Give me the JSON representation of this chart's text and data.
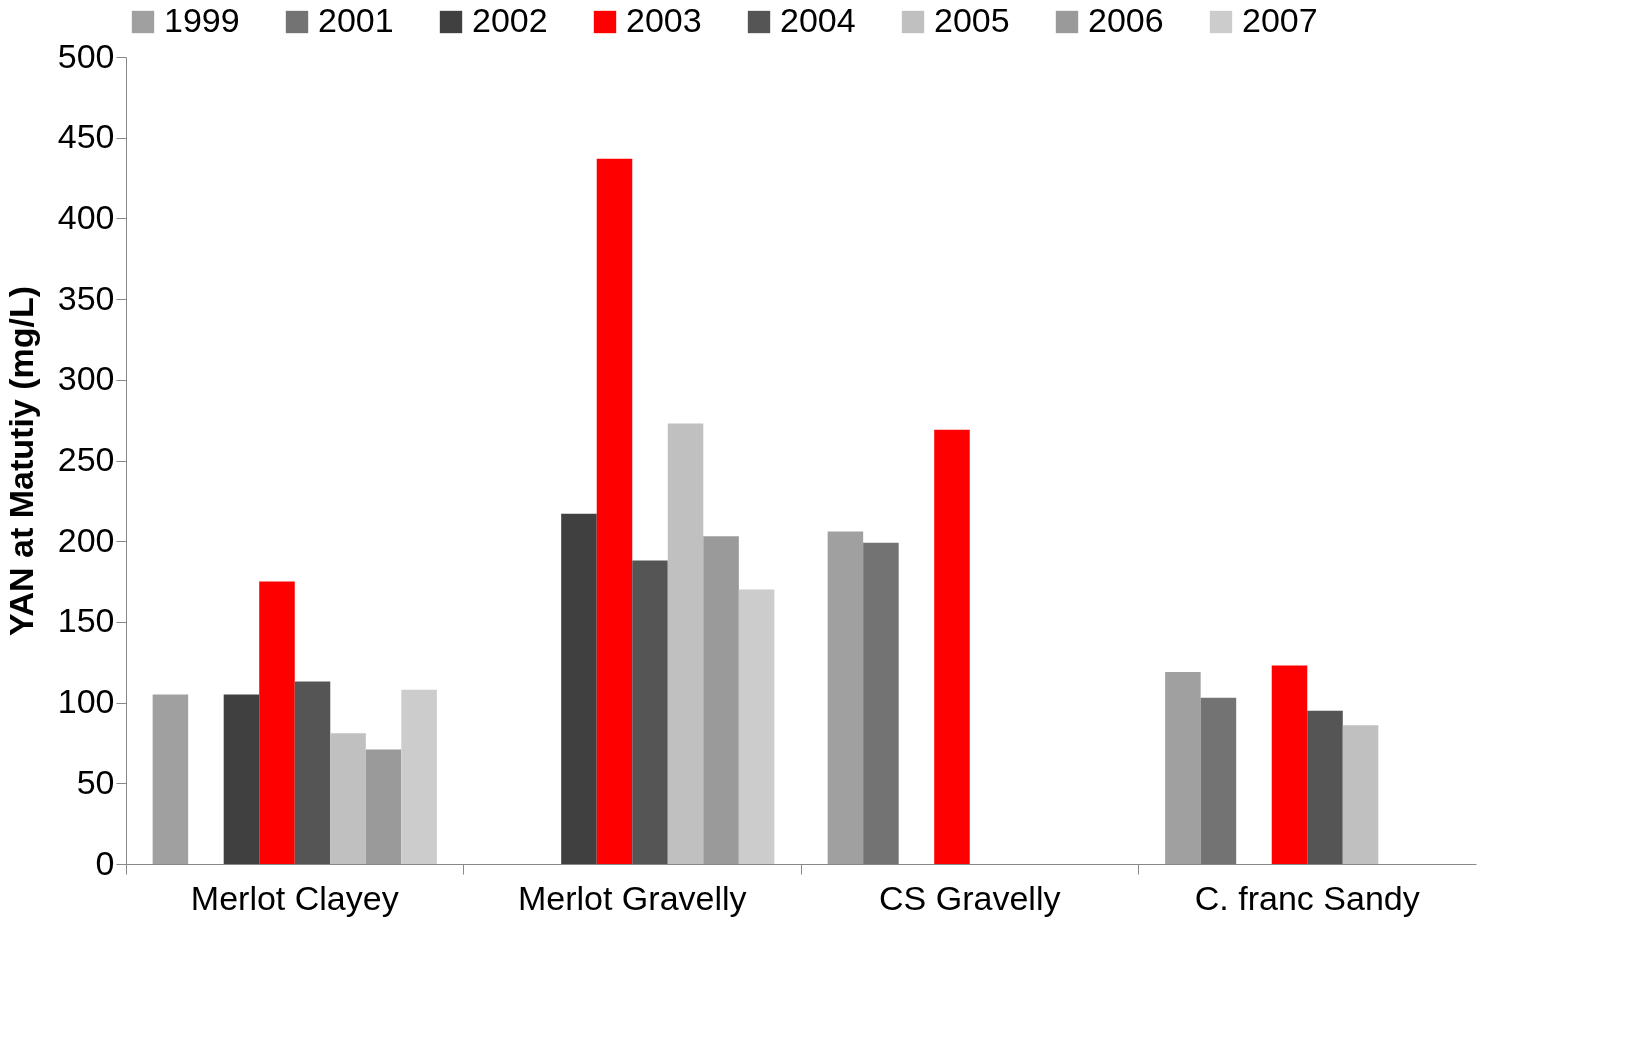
{
  "chart_data": {
    "type": "bar",
    "ylabel": "YAN at Matutiy (mg/L)",
    "categories": [
      "Merlot Clayey",
      "Merlot Gravelly",
      "CS Gravelly",
      "C. franc Sandy"
    ],
    "series": [
      {
        "name": "1999",
        "color": "#a0a0a0",
        "values": [
          105,
          null,
          206,
          119
        ]
      },
      {
        "name": "2001",
        "color": "#737373",
        "values": [
          null,
          null,
          199,
          103
        ]
      },
      {
        "name": "2002",
        "color": "#404040",
        "values": [
          105,
          217,
          null,
          null
        ]
      },
      {
        "name": "2003",
        "color": "#ff0000",
        "values": [
          175,
          437,
          269,
          123
        ]
      },
      {
        "name": "2004",
        "color": "#555555",
        "values": [
          113,
          188,
          null,
          95
        ]
      },
      {
        "name": "2005",
        "color": "#c0c0c0",
        "values": [
          81,
          273,
          null,
          86
        ]
      },
      {
        "name": "2006",
        "color": "#9a9a9a",
        "values": [
          71,
          203,
          null,
          null
        ]
      },
      {
        "name": "2007",
        "color": "#cccccc",
        "values": [
          108,
          170,
          null,
          null
        ]
      }
    ],
    "ylim": [
      0,
      500
    ],
    "yticks": [
      0,
      50,
      100,
      150,
      200,
      250,
      300,
      350,
      400,
      450,
      500
    ],
    "grid": false,
    "legend": "top"
  }
}
